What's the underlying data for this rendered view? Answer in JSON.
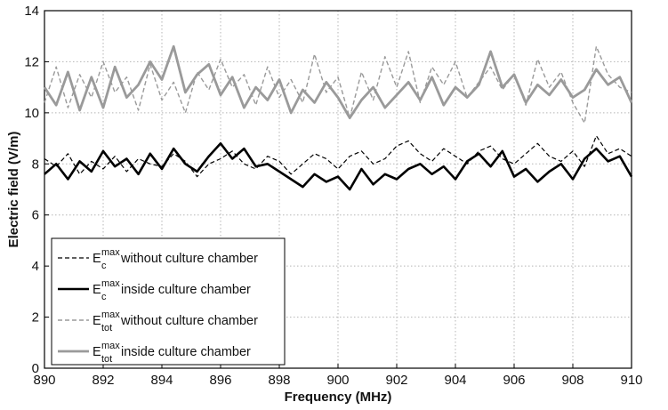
{
  "chart_data": {
    "type": "line",
    "xlabel": "Frequency (MHz)",
    "ylabel": "Electric field (V/m)",
    "xlim": [
      890,
      910
    ],
    "ylim": [
      0,
      14
    ],
    "xticks": [
      "890",
      "892",
      "894",
      "896",
      "898",
      "900",
      "902",
      "904",
      "906",
      "908",
      "910"
    ],
    "yticks": [
      "0",
      "2",
      "4",
      "6",
      "8",
      "10",
      "12",
      "14"
    ],
    "grid": true,
    "legend_position": "lower-left",
    "series": [
      {
        "name_main": "E",
        "name_sup": "max",
        "name_sub": "c",
        "name_rest": " without culture chamber",
        "color": "#000000",
        "style": "dashed",
        "width": 1.2,
        "x": [
          890,
          890.4,
          890.8,
          891.2,
          891.6,
          892,
          892.4,
          892.8,
          893.2,
          893.6,
          894,
          894.4,
          894.8,
          895.2,
          895.6,
          896,
          896.4,
          896.8,
          897.2,
          897.6,
          898,
          898.4,
          898.8,
          899.2,
          899.6,
          900,
          900.4,
          900.8,
          901.2,
          901.6,
          902,
          902.4,
          902.8,
          903.2,
          903.6,
          904,
          904.4,
          904.8,
          905.2,
          905.6,
          906,
          906.4,
          906.8,
          907.2,
          907.6,
          908,
          908.4,
          908.8,
          909.2,
          909.6,
          910
        ],
        "y": [
          8.2,
          7.9,
          8.4,
          7.6,
          8.1,
          7.8,
          8.3,
          7.7,
          8.2,
          8.0,
          7.9,
          8.4,
          8.1,
          7.5,
          8.0,
          8.2,
          8.5,
          8.0,
          7.8,
          8.3,
          8.1,
          7.6,
          8.0,
          8.4,
          8.2,
          7.8,
          8.3,
          8.5,
          8.0,
          8.2,
          8.7,
          8.9,
          8.4,
          8.1,
          8.6,
          8.3,
          8.0,
          8.5,
          8.7,
          8.2,
          8.0,
          8.4,
          8.8,
          8.3,
          8.1,
          8.5,
          7.9,
          9.1,
          8.4,
          8.6,
          8.3
        ]
      },
      {
        "name_main": "E",
        "name_sup": "max",
        "name_sub": "c",
        "name_rest": " inside culture chamber",
        "color": "#000000",
        "style": "solid",
        "width": 2.6,
        "x": [
          890,
          890.4,
          890.8,
          891.2,
          891.6,
          892,
          892.4,
          892.8,
          893.2,
          893.6,
          894,
          894.4,
          894.8,
          895.2,
          895.6,
          896,
          896.4,
          896.8,
          897.2,
          897.6,
          898,
          898.4,
          898.8,
          899.2,
          899.6,
          900,
          900.4,
          900.8,
          901.2,
          901.6,
          902,
          902.4,
          902.8,
          903.2,
          903.6,
          904,
          904.4,
          904.8,
          905.2,
          905.6,
          906,
          906.4,
          906.8,
          907.2,
          907.6,
          908,
          908.4,
          908.8,
          909.2,
          909.6,
          910
        ],
        "y": [
          7.6,
          8.0,
          7.4,
          8.1,
          7.7,
          8.5,
          7.9,
          8.2,
          7.6,
          8.4,
          7.8,
          8.6,
          8.0,
          7.7,
          8.3,
          8.8,
          8.2,
          8.6,
          7.9,
          8.0,
          7.7,
          7.4,
          7.1,
          7.6,
          7.3,
          7.5,
          7.0,
          7.8,
          7.2,
          7.6,
          7.4,
          7.8,
          8.0,
          7.6,
          7.9,
          7.4,
          8.1,
          8.4,
          7.9,
          8.5,
          7.5,
          7.8,
          7.3,
          7.7,
          8.0,
          7.4,
          8.2,
          8.6,
          8.1,
          8.3,
          7.5
        ]
      },
      {
        "name_main": "E",
        "name_sup": "max",
        "name_sub": "tot",
        "name_rest": " without culture chamber",
        "color": "#9a9a9a",
        "style": "dashed",
        "width": 1.4,
        "x": [
          890,
          890.4,
          890.8,
          891.2,
          891.6,
          892,
          892.4,
          892.8,
          893.2,
          893.6,
          894,
          894.4,
          894.8,
          895.2,
          895.6,
          896,
          896.4,
          896.8,
          897.2,
          897.6,
          898,
          898.4,
          898.8,
          899.2,
          899.6,
          900,
          900.4,
          900.8,
          901.2,
          901.6,
          902,
          902.4,
          902.8,
          903.2,
          903.6,
          904,
          904.4,
          904.8,
          905.2,
          905.6,
          906,
          906.4,
          906.8,
          907.2,
          907.6,
          908,
          908.4,
          908.8,
          909.2,
          909.6,
          910
        ],
        "y": [
          10.4,
          11.8,
          10.2,
          11.5,
          10.6,
          12.0,
          10.8,
          11.4,
          10.1,
          11.9,
          10.5,
          11.2,
          10.0,
          11.6,
          10.9,
          12.1,
          11.0,
          11.5,
          10.3,
          11.8,
          10.6,
          11.3,
          10.4,
          12.3,
          10.8,
          11.4,
          9.8,
          11.6,
          10.5,
          12.2,
          11.0,
          12.4,
          10.4,
          11.8,
          11.1,
          12.0,
          10.6,
          11.2,
          11.8,
          10.9,
          11.5,
          10.3,
          12.1,
          11.0,
          11.6,
          10.4,
          9.6,
          12.6,
          11.5,
          11.0,
          10.8
        ]
      },
      {
        "name_main": "E",
        "name_sup": "max",
        "name_sub": "tot",
        "name_rest": " inside culture chamber",
        "color": "#9a9a9a",
        "style": "solid",
        "width": 2.8,
        "x": [
          890,
          890.4,
          890.8,
          891.2,
          891.6,
          892,
          892.4,
          892.8,
          893.2,
          893.6,
          894,
          894.4,
          894.8,
          895.2,
          895.6,
          896,
          896.4,
          896.8,
          897.2,
          897.6,
          898,
          898.4,
          898.8,
          899.2,
          899.6,
          900,
          900.4,
          900.8,
          901.2,
          901.6,
          902,
          902.4,
          902.8,
          903.2,
          903.6,
          904,
          904.4,
          904.8,
          905.2,
          905.6,
          906,
          906.4,
          906.8,
          907.2,
          907.6,
          908,
          908.4,
          908.8,
          909.2,
          909.6,
          910
        ],
        "y": [
          11.0,
          10.3,
          11.6,
          10.1,
          11.4,
          10.2,
          11.8,
          10.6,
          11.1,
          12.0,
          11.3,
          12.6,
          10.8,
          11.5,
          11.9,
          10.7,
          11.4,
          10.2,
          11.0,
          10.5,
          11.3,
          10.0,
          10.9,
          10.4,
          11.2,
          10.6,
          9.8,
          10.5,
          11.0,
          10.2,
          10.7,
          11.2,
          10.5,
          11.4,
          10.3,
          11.0,
          10.6,
          11.1,
          12.4,
          11.0,
          11.5,
          10.4,
          11.1,
          10.7,
          11.3,
          10.6,
          10.9,
          11.7,
          11.1,
          11.4,
          10.4
        ]
      }
    ]
  }
}
